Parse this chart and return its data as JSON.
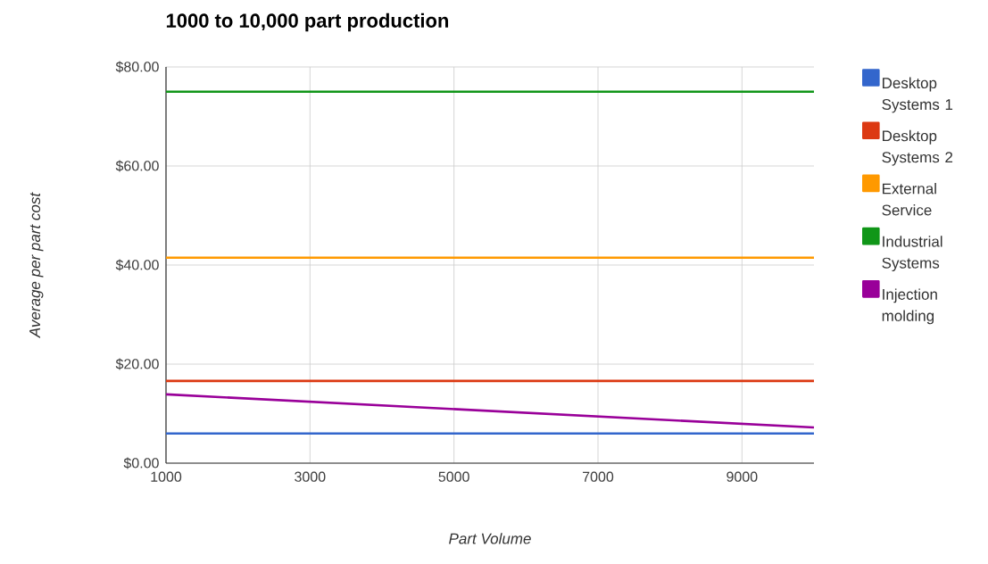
{
  "chart_data": {
    "type": "line",
    "title": "1000 to 10,000 part production",
    "xlabel": "Part Volume",
    "ylabel": "Average per part cost",
    "x": [
      1000,
      10000
    ],
    "series": [
      {
        "name": "Desktop Systems 1",
        "color": "#3366cc",
        "values": [
          6.0,
          6.0
        ]
      },
      {
        "name": "Desktop Systems 2",
        "color": "#dc3912",
        "values": [
          16.6,
          16.6
        ]
      },
      {
        "name": "External Service",
        "color": "#ff9900",
        "values": [
          41.5,
          41.5
        ]
      },
      {
        "name": "Industrial Systems",
        "color": "#109618",
        "values": [
          75.0,
          75.0
        ]
      },
      {
        "name": "Injection molding",
        "color": "#990099",
        "values": [
          13.9,
          7.2
        ]
      }
    ],
    "xlim": [
      1000,
      10000
    ],
    "ylim": [
      0,
      80
    ],
    "xticks": [
      1000,
      3000,
      5000,
      7000,
      9000
    ],
    "yticks": [
      {
        "value": 0,
        "label": "$0.00"
      },
      {
        "value": 20,
        "label": "$20.00"
      },
      {
        "value": 40,
        "label": "$40.00"
      },
      {
        "value": 60,
        "label": "$60.00"
      },
      {
        "value": 80,
        "label": "$80.00"
      }
    ],
    "grid": true,
    "legend": "right"
  }
}
